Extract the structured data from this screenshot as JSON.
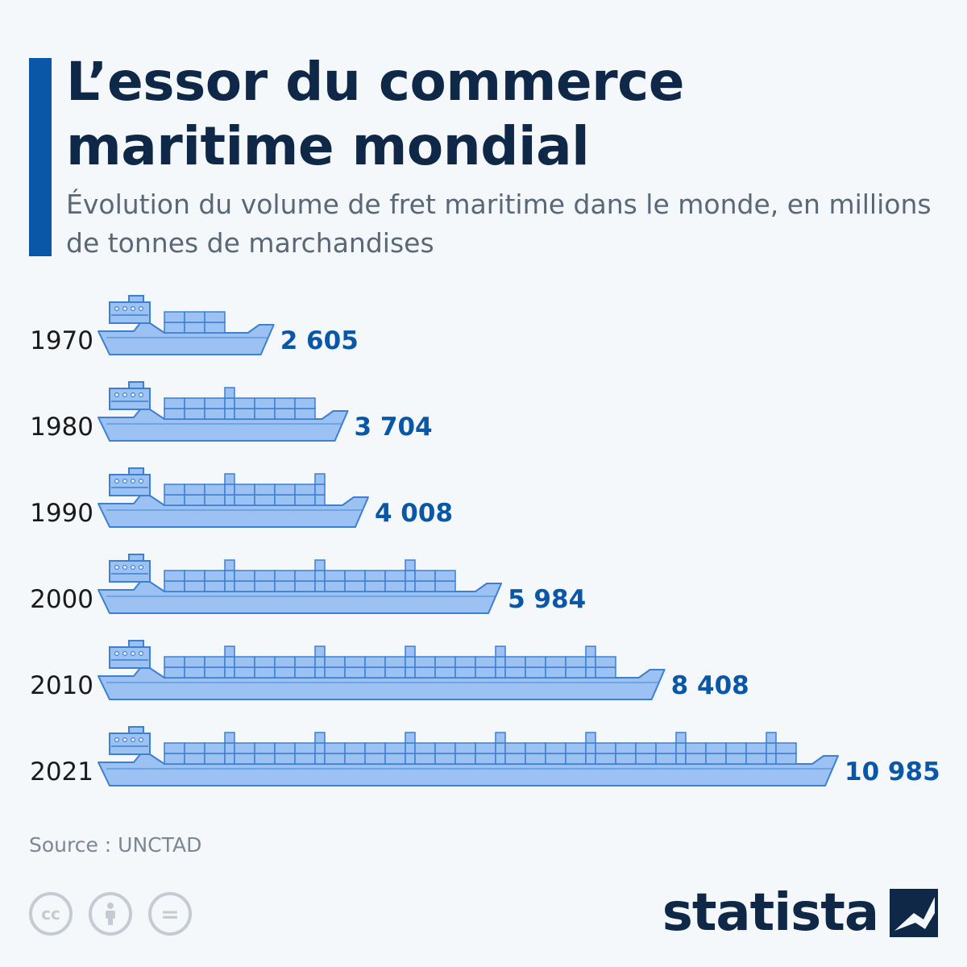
{
  "header": {
    "title": "L’essor du commerce maritime mondial",
    "subtitle": "Évolution du volume de fret maritime dans le monde, en millions de tonnes de marchandises"
  },
  "chart_data": {
    "type": "bar",
    "orientation": "horizontal",
    "title": "L’essor du commerce maritime mondial",
    "subtitle": "Évolution du volume de fret maritime dans le monde, en millions de tonnes de marchandises",
    "categories": [
      "1970",
      "1980",
      "1990",
      "2000",
      "2010",
      "2021"
    ],
    "values": [
      2605,
      3704,
      4008,
      5984,
      8408,
      10985
    ],
    "value_labels": [
      "2 605",
      "3 704",
      "4 008",
      "5 984",
      "8 408",
      "10 985"
    ],
    "mark": "container-ship",
    "xlim": [
      0,
      10985
    ],
    "grid": false,
    "legend": "none",
    "colors": {
      "hull": "#9bc2f3",
      "outline": "#3d7fd1",
      "value": "#0a57a8",
      "label": "#1a1a1a"
    }
  },
  "footer": {
    "source": "Source : UNCTAD",
    "license_icons": [
      "cc-icon",
      "attribution-icon",
      "no-derivatives-icon"
    ],
    "license_glyphs": {
      "cc": "cc",
      "nd": "="
    },
    "brand": "statista",
    "brand_icon": "statista-logo-icon"
  }
}
